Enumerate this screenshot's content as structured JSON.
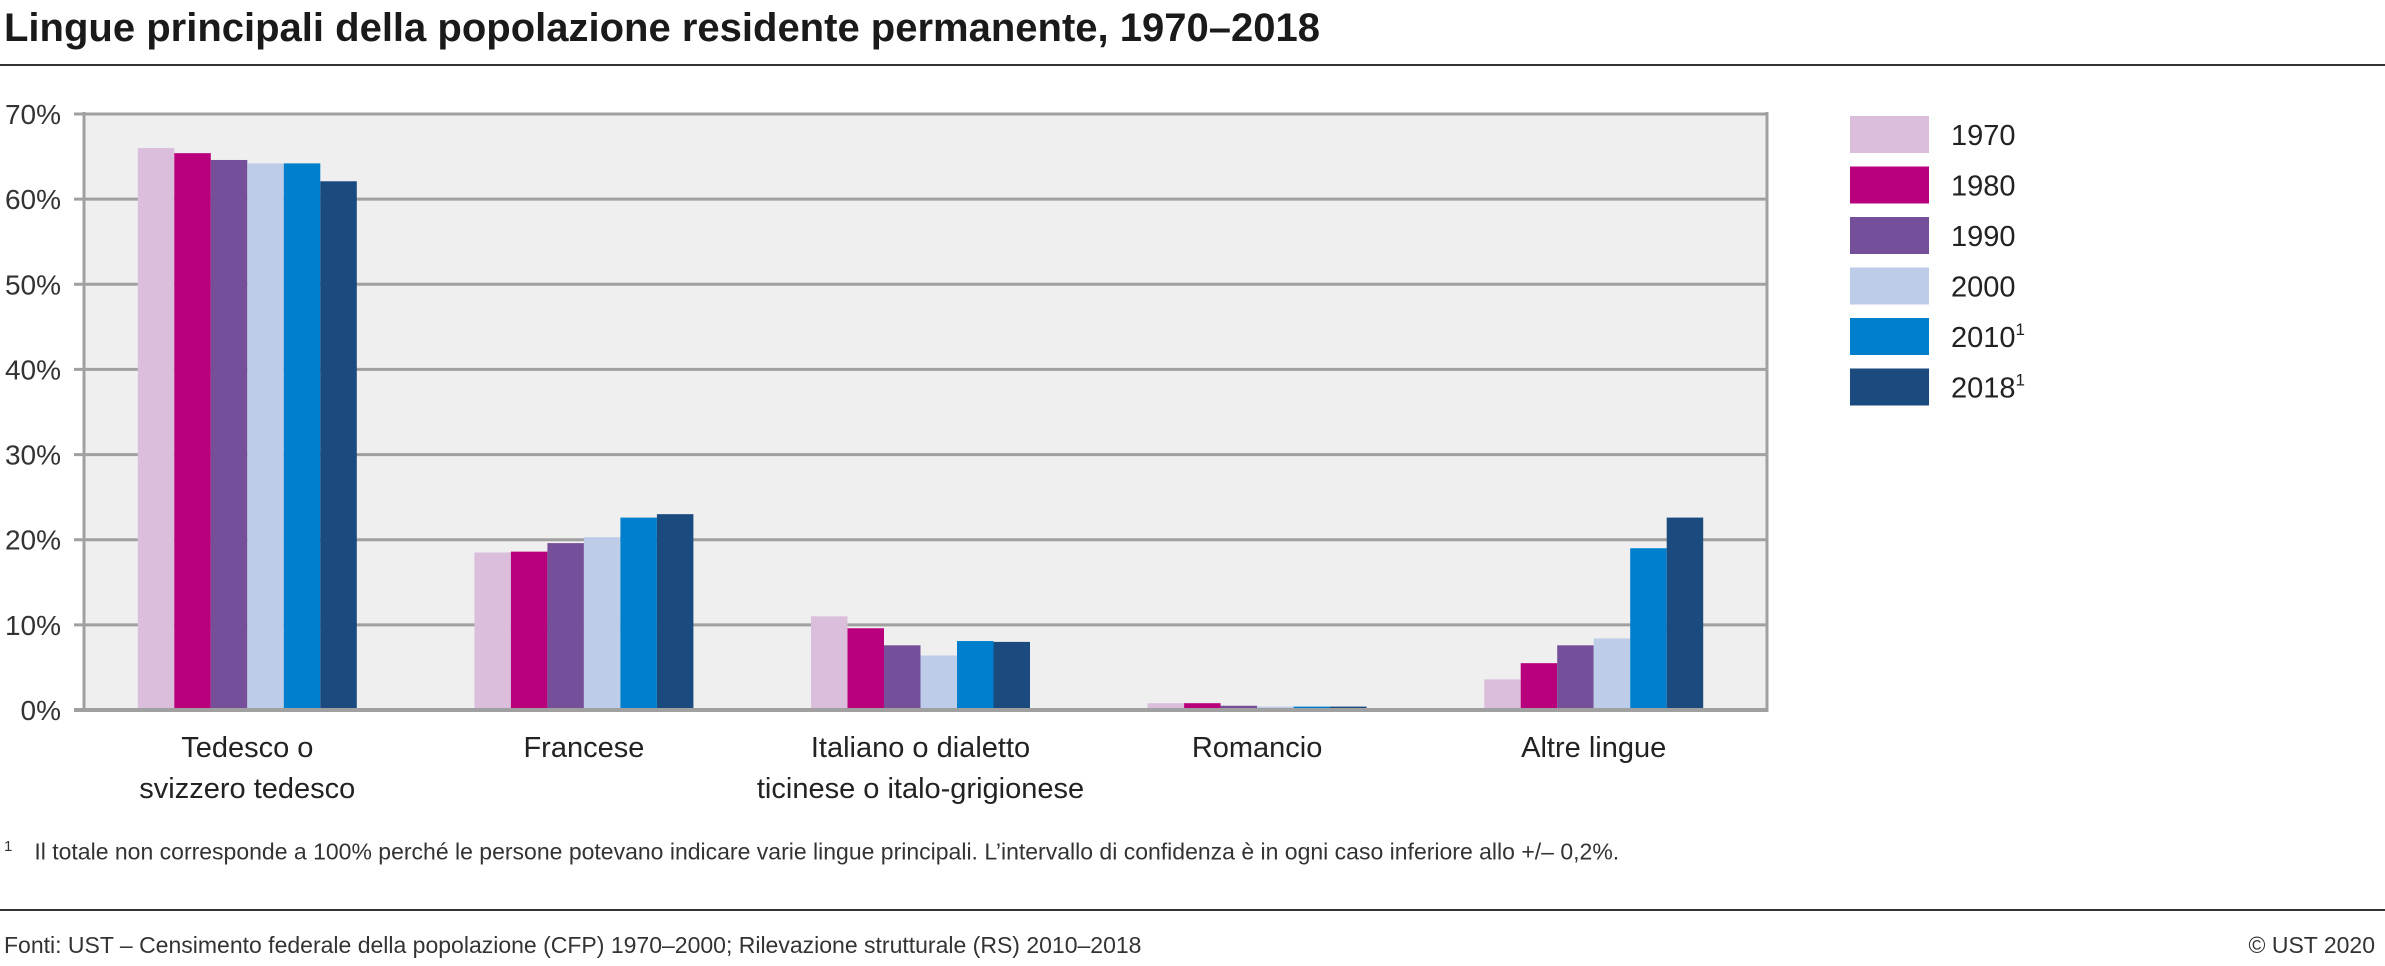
{
  "title": "Lingue principali della popolazione residente permanente, 1970–2018",
  "footnote": {
    "marker": "1",
    "text": "Il totale non corresponde a 100% perché le persone potevano indicare varie lingue principali. L’intervallo di confidenza è in ogni caso inferiore allo +/– 0,2%."
  },
  "source": "Fonti: UST – Censimento federale della popolazione (CFP) 1970–2000; Rilevazione strutturale (RS) 2010–2018",
  "copyright": "© UST 2020",
  "chart_data": {
    "type": "bar",
    "title": "Lingue principali della popolazione residente permanente, 1970–2018",
    "xlabel": "",
    "ylabel": "",
    "ylim": [
      0,
      70
    ],
    "yticks": [
      "0%",
      "10%",
      "20%",
      "30%",
      "40%",
      "50%",
      "60%",
      "70%"
    ],
    "grid": true,
    "legend": "right",
    "categories": [
      [
        "Tedesco o",
        "svizzero tedesco"
      ],
      [
        "Francese"
      ],
      [
        "Italiano o dialetto",
        "ticinese o italo-grigionese"
      ],
      [
        "Romancio"
      ],
      [
        "Altre lingue"
      ]
    ],
    "series": [
      {
        "name": "1970",
        "sup": "",
        "color": "#dbbedc",
        "values": [
          66.0,
          18.5,
          11.0,
          0.8,
          3.6
        ]
      },
      {
        "name": "1980",
        "sup": "",
        "color": "#b9007c",
        "values": [
          65.4,
          18.6,
          9.6,
          0.8,
          5.5
        ]
      },
      {
        "name": "1990",
        "sup": "",
        "color": "#764f9a",
        "values": [
          64.6,
          19.6,
          7.6,
          0.5,
          7.6
        ]
      },
      {
        "name": "2000",
        "sup": "",
        "color": "#bccce9",
        "values": [
          64.2,
          20.3,
          6.4,
          0.4,
          8.4
        ]
      },
      {
        "name": "2010",
        "sup": "1",
        "color": "#0080cc",
        "values": [
          64.2,
          22.6,
          8.1,
          0.4,
          19.0
        ]
      },
      {
        "name": "2018",
        "sup": "1",
        "color": "#1b4a7e",
        "values": [
          62.1,
          23.0,
          8.0,
          0.4,
          22.6
        ]
      }
    ],
    "plot_background": "#efefef",
    "grid_color": "#a0a0a0"
  }
}
